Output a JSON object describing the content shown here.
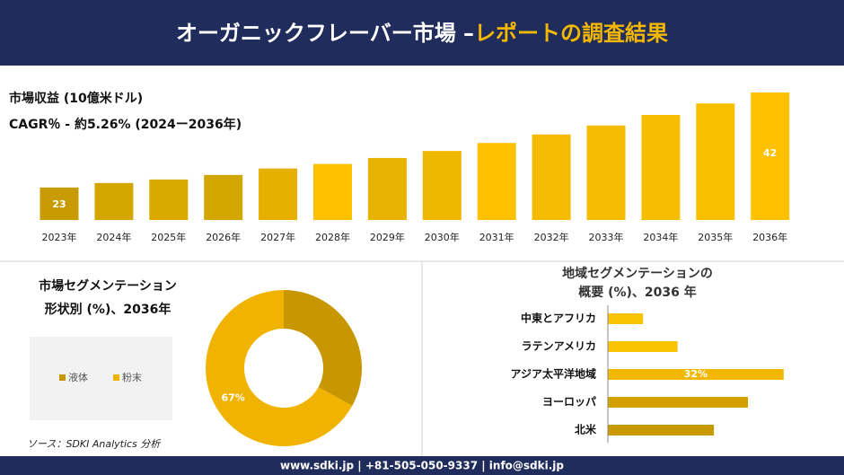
{
  "header": {
    "title": "オーガニックフレーバー市場 –",
    "highlight": "レポートの調査結果"
  },
  "chart_data": [
    {
      "type": "bar",
      "title": "市場収益 (10億米ドル)",
      "subtitle": "CAGR％ - 約5.26% (2024ー2036年)",
      "categories": [
        "2023年",
        "2024年",
        "2025年",
        "2026年",
        "2027年",
        "2028年",
        "2029年",
        "2030年",
        "2031年",
        "2032年",
        "2033年",
        "2034年",
        "2035年",
        "2036年"
      ],
      "values": [
        23,
        23.9,
        24.6,
        25.5,
        26.8,
        27.7,
        28.9,
        30.3,
        31.9,
        33.6,
        35.4,
        37.5,
        39.8,
        42
      ],
      "value_labels": [
        "23",
        null,
        null,
        null,
        null,
        null,
        null,
        null,
        null,
        null,
        null,
        null,
        null,
        "42"
      ],
      "colors": [
        "#c89b00",
        "#d4a600",
        "#d9a900",
        "#d4a600",
        "#e6b000",
        "#ffc000",
        "#e8b200",
        "#f0b700",
        "#ffc000",
        "#f5bb00",
        "#f5bb00",
        "#f7bd00",
        "#f8be00",
        "#ffc000"
      ],
      "ylim": [
        16.5,
        43
      ]
    },
    {
      "type": "donut",
      "title": [
        "市場セグメンテーション",
        "形状別 (%)、2036年"
      ],
      "categories": [
        "液体",
        "粉末"
      ],
      "values": [
        33,
        67
      ],
      "value_labels": [
        null,
        "67%"
      ],
      "colors": [
        "#c89600",
        "#f0b400"
      ]
    },
    {
      "type": "barh",
      "title": [
        "地域セグメンテーションの",
        "概要 (%)、2036 年"
      ],
      "categories": [
        "中東とアフリカ",
        "ラテンアメリカ",
        "アジア太平洋地域",
        "ヨーロッパ",
        "北米"
      ],
      "values": [
        6.4,
        12.7,
        32,
        25.5,
        19.3
      ],
      "value_labels": [
        null,
        null,
        "32%",
        null,
        null
      ],
      "colors": [
        "#f8c300",
        "#f8c300",
        "#f2b700",
        "#d4a200",
        "#c89a00"
      ],
      "xlim": [
        0,
        42
      ]
    }
  ],
  "source": "ソース：SDKI Analytics 分析",
  "footer": "www.sdki.jp | +81-505-050-9337 | info@sdki.jp"
}
